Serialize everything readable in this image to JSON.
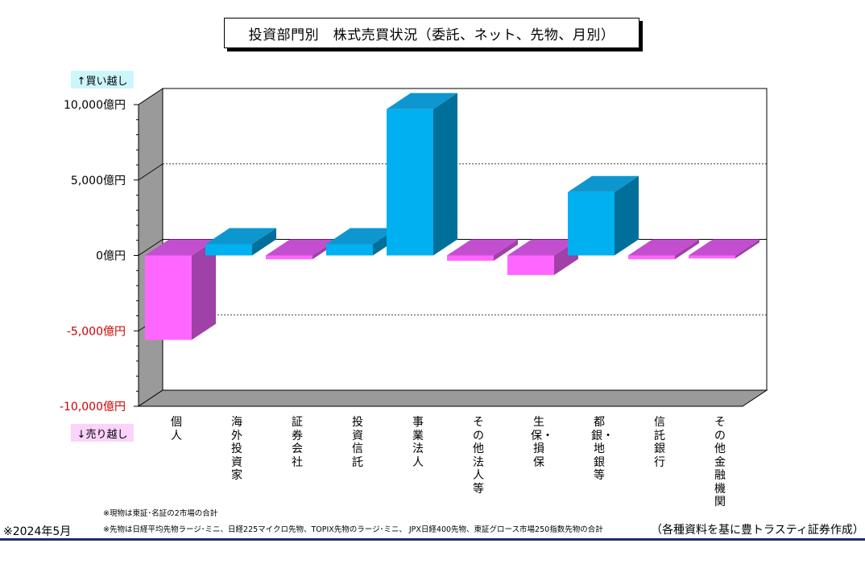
{
  "title": "投資部門別　株式売買状況（委託、ネット、先物、月別）",
  "labels": {
    "buy": "↑買い越し",
    "sell": "↓売り越し"
  },
  "notes": [
    "※現物は東証･名証の2市場の合計",
    "※先物は日経平均先物ラージ･ミニ、日経225マイクロ先物、TOPIX先物のラージ･ミニ、 JPX日経400先物、東証グロース市場250指数先物の合計"
  ],
  "date": "※2024年5月",
  "source": "（各種資料を基に豊トラスティ証券作成）",
  "chart_data": {
    "type": "bar",
    "categories": [
      "個人",
      "海外投資家",
      "証券会社",
      "投資信託",
      "事業法人",
      "その他法人等",
      "生保・損保",
      "都銀・地銀等",
      "信託銀行",
      "その他金融機関"
    ],
    "values": [
      -5600,
      750,
      -250,
      750,
      9700,
      -350,
      -1300,
      4200,
      -250,
      -200
    ],
    "ylim": [
      -10000,
      10000
    ],
    "yticks": [
      {
        "value": 10000,
        "label": "10,000億円"
      },
      {
        "value": 5000,
        "label": "5,000億円"
      },
      {
        "value": 0,
        "label": "0億円"
      },
      {
        "value": -5000,
        "label": "-5,000億円"
      },
      {
        "value": -10000,
        "label": "-10,000億円"
      }
    ],
    "colors": {
      "positive_front": "#00b0f0",
      "positive_top": "#0e97cf",
      "positive_side": "#00709b",
      "negative_front": "#ff66ff",
      "negative_top": "#c34fd0",
      "negative_side": "#a040a8",
      "negative_tick": "#cc0000"
    },
    "grid": true
  }
}
